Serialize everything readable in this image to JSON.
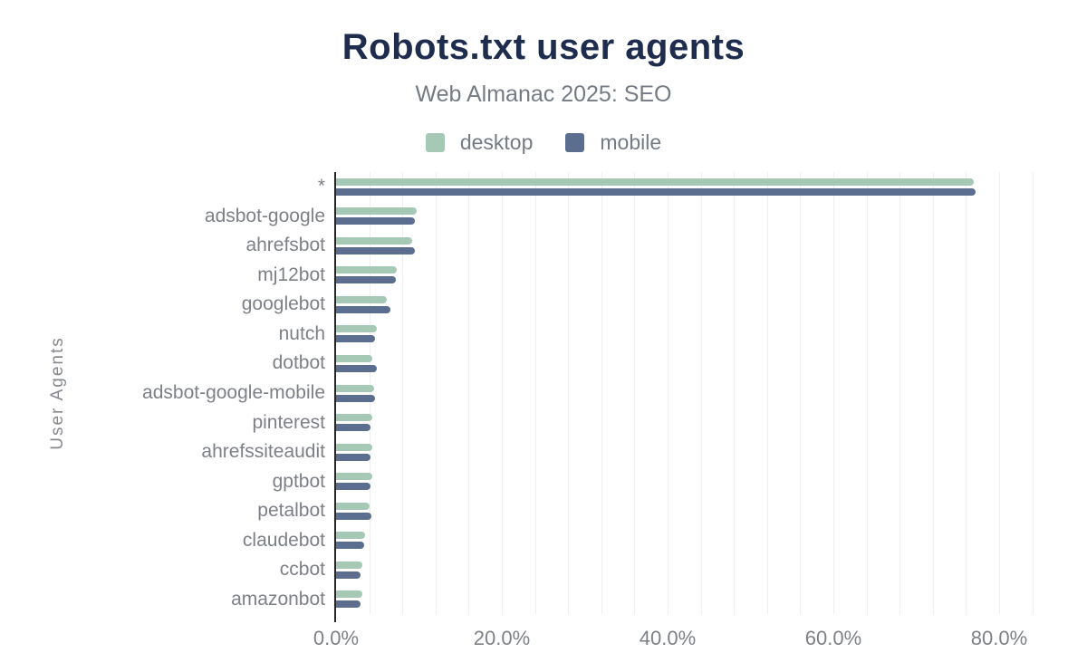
{
  "chart_data": {
    "type": "bar",
    "orientation": "horizontal",
    "title": "Robots.txt user agents",
    "subtitle": "Web Almanac 2025: SEO",
    "xlabel": "",
    "ylabel": "User Agents",
    "xlim": [
      0,
      80
    ],
    "x_tick_values": [
      0,
      20,
      40,
      60,
      80
    ],
    "x_tick_labels": [
      "0.0%",
      "20.0%",
      "40.0%",
      "60.0%",
      "80.0%"
    ],
    "minor_gridline_step_pct": 4,
    "grid": "vertical-minor-only",
    "legend_position": "top-center",
    "categories": [
      "*",
      "adsbot-google",
      "ahrefsbot",
      "mj12bot",
      "googlebot",
      "nutch",
      "dotbot",
      "adsbot-google-mobile",
      "pinterest",
      "ahrefssiteaudit",
      "gptbot",
      "petalbot",
      "claudebot",
      "ccbot",
      "amazonbot"
    ],
    "series": [
      {
        "name": "desktop",
        "color": "#a6c9b6",
        "values": [
          76.9,
          9.7,
          9.2,
          7.3,
          6.1,
          4.9,
          4.4,
          4.6,
          4.4,
          4.4,
          4.4,
          4.0,
          3.5,
          3.2,
          3.2
        ]
      },
      {
        "name": "mobile",
        "color": "#5b6e8f",
        "values": [
          77.2,
          9.5,
          9.5,
          7.2,
          6.6,
          4.7,
          4.9,
          4.7,
          4.2,
          4.1,
          4.2,
          4.3,
          3.4,
          3.0,
          2.9
        ]
      }
    ],
    "colors": {
      "title": "#1e2c4e",
      "subtitle": "#757b84",
      "axis_labels": "#7d8187",
      "axis_line": "#272727",
      "gridline": "#efefef",
      "background": "#ffffff"
    }
  }
}
